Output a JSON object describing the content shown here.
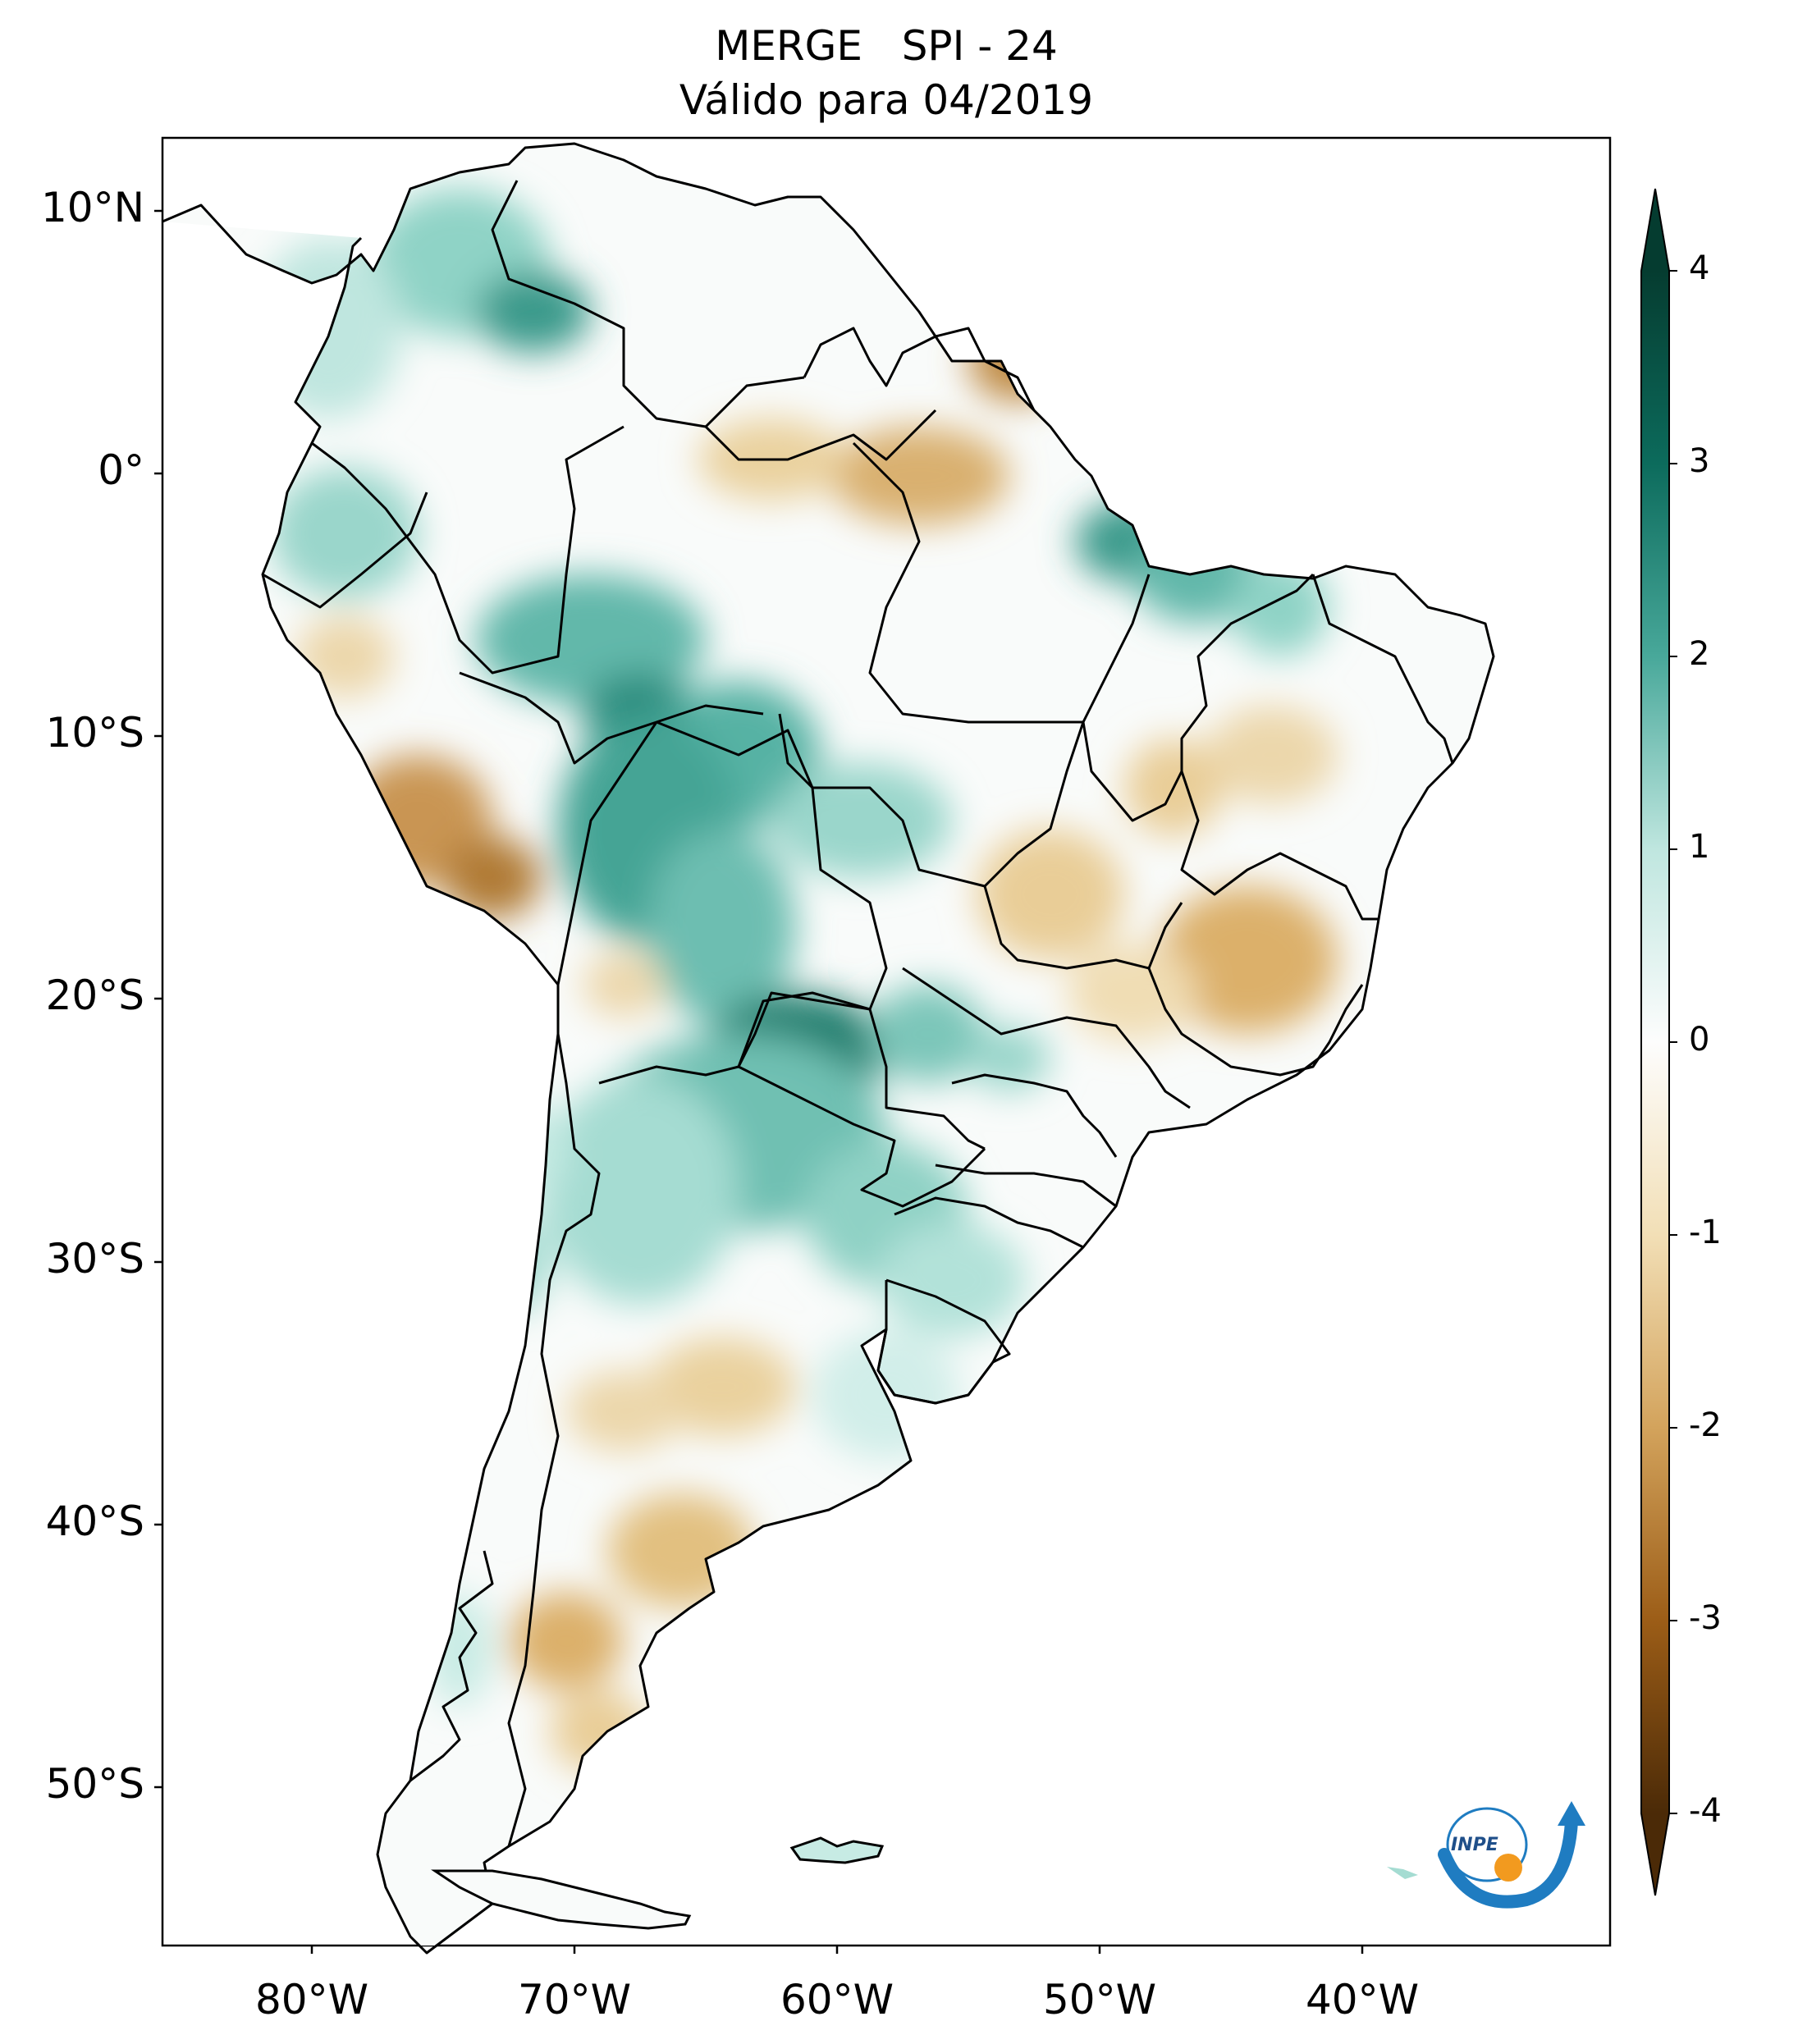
{
  "title": {
    "line1": "MERGE   SPI - 24",
    "line2": "Válido para 04/2019"
  },
  "map": {
    "region": "South America",
    "lat_ticks": [
      "10°N",
      "0°",
      "10°S",
      "20°S",
      "30°S",
      "40°S",
      "50°S"
    ],
    "lon_ticks": [
      "80°W",
      "70°W",
      "60°W",
      "50°W",
      "40°W"
    ],
    "wet_regions": [
      "north-west Amazon",
      "Bolivia lowlands",
      "Paraguay / north Argentina",
      "north-east Brazil coast"
    ],
    "dry_regions": [
      "Peru Andes",
      "Guianas",
      "central Argentina",
      "Patagonia",
      "Minas Gerais"
    ]
  },
  "colorbar": {
    "min": -4,
    "max": 4,
    "tick_labels": [
      "4",
      "3",
      "2",
      "1",
      "0",
      "-1",
      "-2",
      "-3",
      "-4"
    ],
    "colors": {
      "4": "#053c30",
      "3": "#0c6b5c",
      "2": "#48a89a",
      "1": "#bfe6df",
      "0": "#fdfdfd",
      "-1": "#f2dfb6",
      "-2": "#d3a35c",
      "-3": "#9c5d17",
      "-4": "#4b2a07"
    },
    "extend": "both"
  },
  "logo": {
    "text": "INPE",
    "colors": {
      "blue": "#1f7cc1",
      "orange": "#f29a1f"
    }
  }
}
